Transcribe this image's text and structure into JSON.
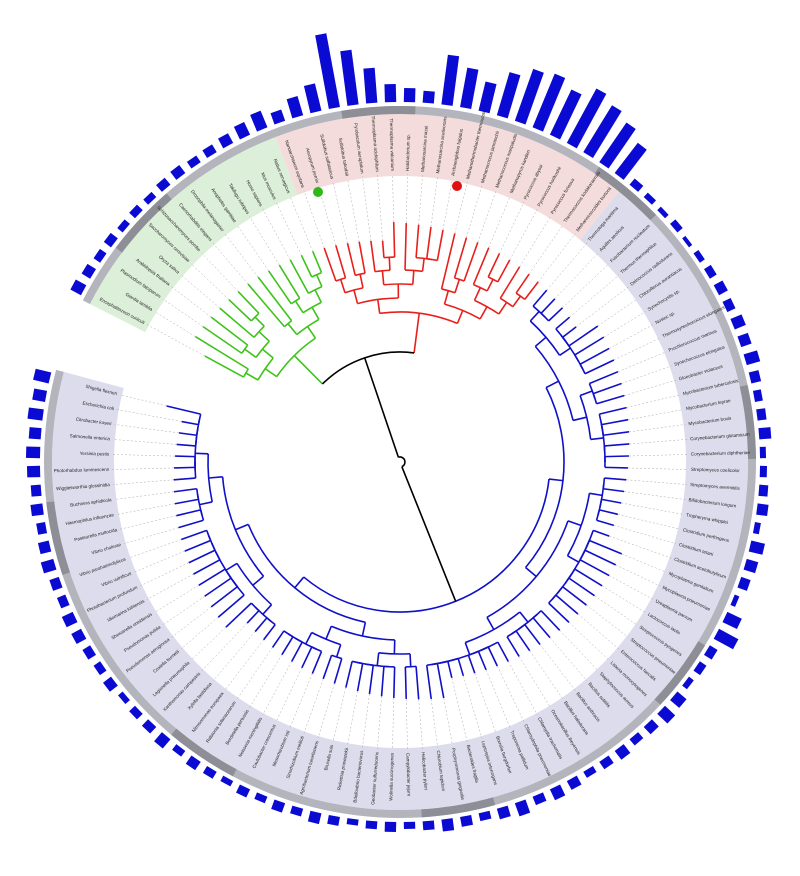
{
  "tree": {
    "clades": [
      {
        "color": "#3ec31a",
        "band": "#dcefd8",
        "leaves": [
          {
            "label": "Encephalitozoon cuniculi",
            "bar": 12
          },
          {
            "label": "Giardia lamblia",
            "bar": 10
          },
          {
            "label": "Plasmodium falciparum",
            "bar": 8
          },
          {
            "label": "Arabidopsis thaliana",
            "bar": 9
          },
          {
            "label": "Oryza sativa",
            "bar": 7
          },
          {
            "label": "Saccharomyces cerevisiae",
            "bar": 8
          },
          {
            "label": "Schizosaccharomyces pombe",
            "bar": 7
          },
          {
            "label": "Caenorhabditis elegans",
            "bar": 9
          },
          {
            "label": "Drosophila melanogaster",
            "bar": 10
          },
          {
            "label": "Anopheles gambiae",
            "bar": 8
          },
          {
            "label": "Takifugu rubripes",
            "bar": 9
          },
          {
            "label": "Homo sapiens",
            "bar": 11
          },
          {
            "label": "Mus musculus",
            "bar": 14
          },
          {
            "label": "Rattus norvegicus",
            "bar": 18
          }
        ]
      },
      {
        "color": "#e8201b",
        "band": "#f5dcdc",
        "leaves": [
          {
            "label": "Nanoarchaeum equitans",
            "bar": 12
          },
          {
            "label": "Aeropyrum pernix",
            "bar": 20
          },
          {
            "label": "Sulfolobus solfataricus",
            "bar": 28
          },
          {
            "label": "Sulfolobus tokodaii",
            "bar": 75
          },
          {
            "label": "Pyrobaculum aerophilum",
            "bar": 55
          },
          {
            "label": "Thermoplasma acidophilum",
            "bar": 35
          },
          {
            "label": "Thermoplasma volcanium",
            "bar": 18
          },
          {
            "label": "Halobacterium sp.",
            "bar": 14
          },
          {
            "label": "Methanosarcina mazei",
            "bar": 12
          },
          {
            "label": "Methanosarcina acetivorans",
            "bar": 50
          },
          {
            "label": "Archaeoglobus fulgidus",
            "bar": 40
          },
          {
            "label": "Methanothermobacter thermautotrophicus",
            "bar": 30
          },
          {
            "label": "Methanococcus jannaschii",
            "bar": 45
          },
          {
            "label": "Methanococcus maripaludis",
            "bar": 55
          },
          {
            "label": "Methanopyrus kandleri",
            "bar": 58
          },
          {
            "label": "Pyrococcus abyssi",
            "bar": 50
          },
          {
            "label": "Pyrococcus horikoshii",
            "bar": 62
          },
          {
            "label": "Pyrococcus furiosus",
            "bar": 55
          },
          {
            "label": "Thermococcus kodakaraensis",
            "bar": 48
          },
          {
            "label": "Methanococcoides burtonii",
            "bar": 38
          }
        ]
      },
      {
        "color": "#1010c8",
        "band": "#dddcec",
        "leaves": [
          {
            "label": "Thermotoga maritima",
            "bar": 8
          },
          {
            "label": "Aquifex aeolicus",
            "bar": 6
          },
          {
            "label": "Fusobacterium nucleatum",
            "bar": 5
          },
          {
            "label": "Thermus thermophilus",
            "bar": 7
          },
          {
            "label": "Deinococcus radiodurans",
            "bar": 4
          },
          {
            "label": "Chloroflexus aurantiacus",
            "bar": 6
          },
          {
            "label": "Synechocystis sp.",
            "bar": 8
          },
          {
            "label": "Nostoc sp.",
            "bar": 10
          },
          {
            "label": "Thermosynechococcus elongatus",
            "bar": 9
          },
          {
            "label": "Prochlorococcus marinus",
            "bar": 12
          },
          {
            "label": "Synechococcus elongatus",
            "bar": 11
          },
          {
            "label": "Gloeobacter violaceus",
            "bar": 14
          },
          {
            "label": "Mycobacterium tuberculosis",
            "bar": 10
          },
          {
            "label": "Mycobacterium leprae",
            "bar": 8
          },
          {
            "label": "Mycobacterium bovis",
            "bar": 9
          },
          {
            "label": "Corynebacterium glutamicum",
            "bar": 12
          },
          {
            "label": "Corynebacterium diphtheriae",
            "bar": 6
          },
          {
            "label": "Streptomyces coelicolor",
            "bar": 7
          },
          {
            "label": "Streptomyces avermitilis",
            "bar": 9
          },
          {
            "label": "Bifidobacterium longum",
            "bar": 11
          },
          {
            "label": "Tropheryma whipplei",
            "bar": 6
          },
          {
            "label": "Clostridium perfringens",
            "bar": 14
          },
          {
            "label": "Clostridium tetani",
            "bar": 12
          },
          {
            "label": "Clostridium acetobutylicum",
            "bar": 10
          },
          {
            "label": "Mycoplasma genitalium",
            "bar": 5
          },
          {
            "label": "Mycoplasma pneumoniae",
            "bar": 16
          },
          {
            "label": "Ureaplasma parvum",
            "bar": 22
          },
          {
            "label": "Lactococcus lactis",
            "bar": 9
          },
          {
            "label": "Streptococcus pyogenes",
            "bar": 8
          },
          {
            "label": "Streptococcus pneumoniae",
            "bar": 6
          },
          {
            "label": "Enterococcus faecalis",
            "bar": 12
          },
          {
            "label": "Listeria monocytogenes",
            "bar": 14
          },
          {
            "label": "Staphylococcus aureus",
            "bar": 10
          },
          {
            "label": "Bacillus subtilis",
            "bar": 8
          },
          {
            "label": "Bacillus anthracis",
            "bar": 11
          },
          {
            "label": "Bacillus halodurans",
            "bar": 9
          },
          {
            "label": "Oceanobacillus iheyensis",
            "bar": 7
          },
          {
            "label": "Chlamydia trachomatis",
            "bar": 10
          },
          {
            "label": "Chlamydophila pneumoniae",
            "bar": 12
          },
          {
            "label": "Treponema pallidum",
            "bar": 9
          },
          {
            "label": "Borrelia burgdorferi",
            "bar": 14
          },
          {
            "label": "Leptospira interrogans",
            "bar": 11
          },
          {
            "label": "Bacteroides fragilis",
            "bar": 8
          },
          {
            "label": "Porphyromonas gingivalis",
            "bar": 10
          },
          {
            "label": "Chlorobium tepidum",
            "bar": 12
          },
          {
            "label": "Helicobacter pylori",
            "bar": 9
          },
          {
            "label": "Campylobacter jejuni",
            "bar": 7
          },
          {
            "label": "Wolinella succinogenes",
            "bar": 10
          },
          {
            "label": "Geobacter sulfurreducens",
            "bar": 8
          },
          {
            "label": "Bdellovibrio bacteriovorus",
            "bar": 6
          },
          {
            "label": "Rickettsia prowazekii",
            "bar": 9
          },
          {
            "label": "Brucella suis",
            "bar": 11
          },
          {
            "label": "Agrobacterium tumefaciens",
            "bar": 8
          },
          {
            "label": "Sinorhizobium meliloti",
            "bar": 10
          },
          {
            "label": "Mesorhizobium loti",
            "bar": 7
          },
          {
            "label": "Caulobacter crescentus",
            "bar": 9
          },
          {
            "label": "Neisseria meningitidis",
            "bar": 6
          },
          {
            "label": "Bordetella pertussis",
            "bar": 8
          },
          {
            "label": "Ralstonia solanacearum",
            "bar": 10
          },
          {
            "label": "Nitrosomonas europaea",
            "bar": 7
          },
          {
            "label": "Xylella fastidiosa",
            "bar": 12
          },
          {
            "label": "Xanthomonas campestris",
            "bar": 9
          },
          {
            "label": "Legionella pneumophila",
            "bar": 8
          },
          {
            "label": "Coxiella burnetii",
            "bar": 6
          },
          {
            "label": "Pseudomonas aeruginosa",
            "bar": 10
          },
          {
            "label": "Pseudomonas putida",
            "bar": 8
          },
          {
            "label": "Shewanella oneidensis",
            "bar": 9
          },
          {
            "label": "Idiomarina loihiensis",
            "bar": 11
          },
          {
            "label": "Photobacterium profundum",
            "bar": 12
          },
          {
            "label": "Vibrio vulnificus",
            "bar": 9
          },
          {
            "label": "Vibrio parahaemolyticus",
            "bar": 10
          },
          {
            "label": "Vibrio cholerae",
            "bar": 13
          },
          {
            "label": "Pasteurella multocida",
            "bar": 11
          },
          {
            "label": "Haemophilus influenzae",
            "bar": 9
          },
          {
            "label": "Buchnera aphidicola",
            "bar": 12
          },
          {
            "label": "Wigglesworthia glossinidia",
            "bar": 10
          },
          {
            "label": "Photorhabdus luminescens",
            "bar": 13
          },
          {
            "label": "Yersinia pestis",
            "bar": 14
          },
          {
            "label": "Salmonella enterica",
            "bar": 12
          },
          {
            "label": "Citrobacter koseri",
            "bar": 15
          },
          {
            "label": "Escherichia coli",
            "bar": 13
          },
          {
            "label": "Shigella flexneri",
            "bar": 16
          }
        ]
      }
    ]
  }
}
